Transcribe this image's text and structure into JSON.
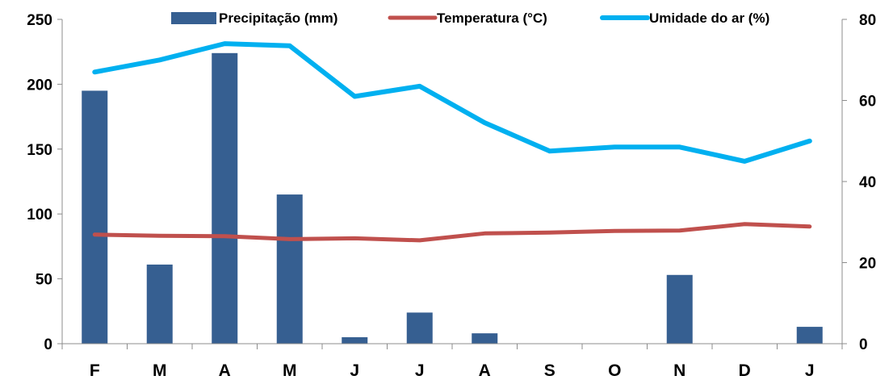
{
  "chart_data": {
    "type": "bar",
    "categories": [
      "F",
      "M",
      "A",
      "M",
      "J",
      "J",
      "A",
      "S",
      "O",
      "N",
      "D",
      "J"
    ],
    "series": [
      {
        "name": "Precipitação (mm)",
        "type": "bar",
        "axis": "left",
        "color": "#365F91",
        "values": [
          195,
          61,
          224,
          115,
          5,
          24,
          8,
          0,
          0,
          53,
          0,
          13
        ]
      },
      {
        "name": "Temperatura (°C)",
        "type": "line",
        "axis": "right",
        "color": "#C0504D",
        "values": [
          26.9,
          26.6,
          26.5,
          25.8,
          26.0,
          25.5,
          27.2,
          27.4,
          27.8,
          27.9,
          29.5,
          28.9
        ]
      },
      {
        "name": "Umidade do ar (%)",
        "type": "line",
        "axis": "right",
        "color": "#00B0F0",
        "values": [
          67,
          70,
          74,
          73.5,
          61,
          63.5,
          54.5,
          47.5,
          48.5,
          48.5,
          45,
          50
        ]
      }
    ],
    "y_left": {
      "lim": [
        0,
        250
      ],
      "ticks": [
        0,
        50,
        100,
        150,
        200,
        250
      ]
    },
    "y_right": {
      "lim": [
        0,
        80
      ],
      "ticks": [
        0,
        20,
        40,
        60,
        80
      ]
    },
    "legend": "top-center",
    "grid": false
  }
}
